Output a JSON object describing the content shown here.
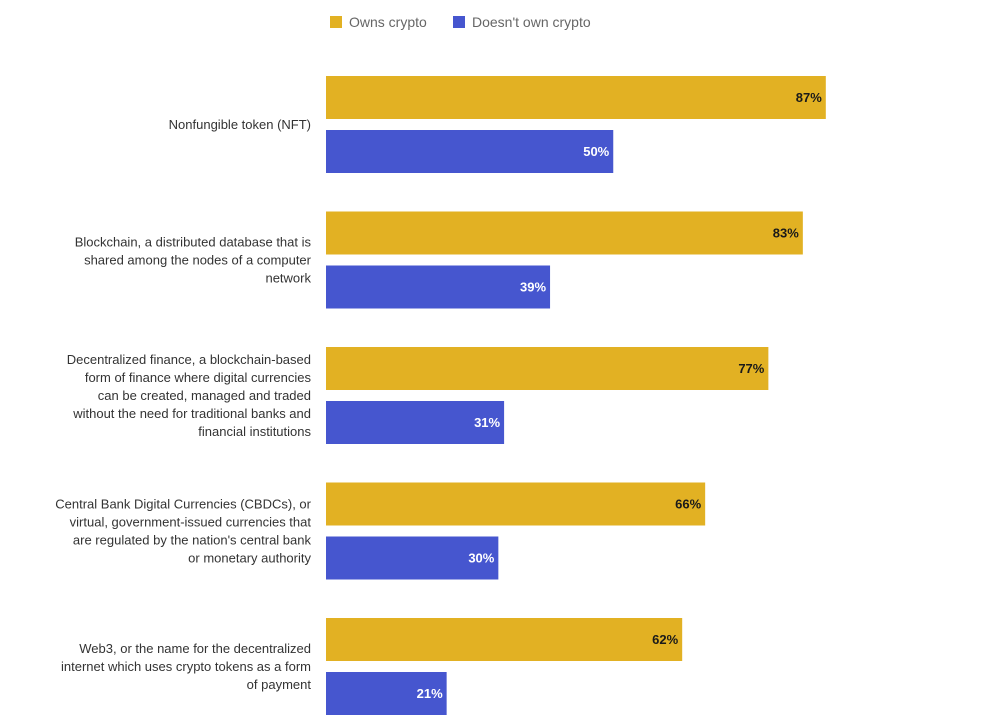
{
  "chart_data": {
    "type": "bar",
    "orientation": "horizontal",
    "legend_position": "top",
    "xlim": [
      0,
      100
    ],
    "grid": false,
    "value_suffix": "%",
    "categories": [
      [
        "Nonfungible token (NFT)"
      ],
      [
        "Blockchain, a distributed database that is",
        "shared among the nodes of a computer",
        "network"
      ],
      [
        "Decentralized finance, a blockchain-based",
        "form of finance where digital currencies",
        "can be created, managed and traded",
        "without the need for traditional banks and",
        "financial institutions"
      ],
      [
        "Central Bank Digital Currencies (CBDCs), or",
        "virtual, government-issued currencies that",
        "are regulated by the nation's central bank",
        "or monetary authority"
      ],
      [
        "Web3, or the name for the decentralized",
        "internet which uses crypto tokens as a form",
        "of payment"
      ]
    ],
    "series": [
      {
        "name": "Owns crypto",
        "color": "#E2B123",
        "label_color": "#1a1a1a",
        "values": [
          87,
          83,
          77,
          66,
          62
        ]
      },
      {
        "name": "Doesn't own crypto",
        "color": "#4656CF",
        "label_color": "#ffffff",
        "values": [
          50,
          39,
          31,
          30,
          21
        ]
      }
    ]
  }
}
